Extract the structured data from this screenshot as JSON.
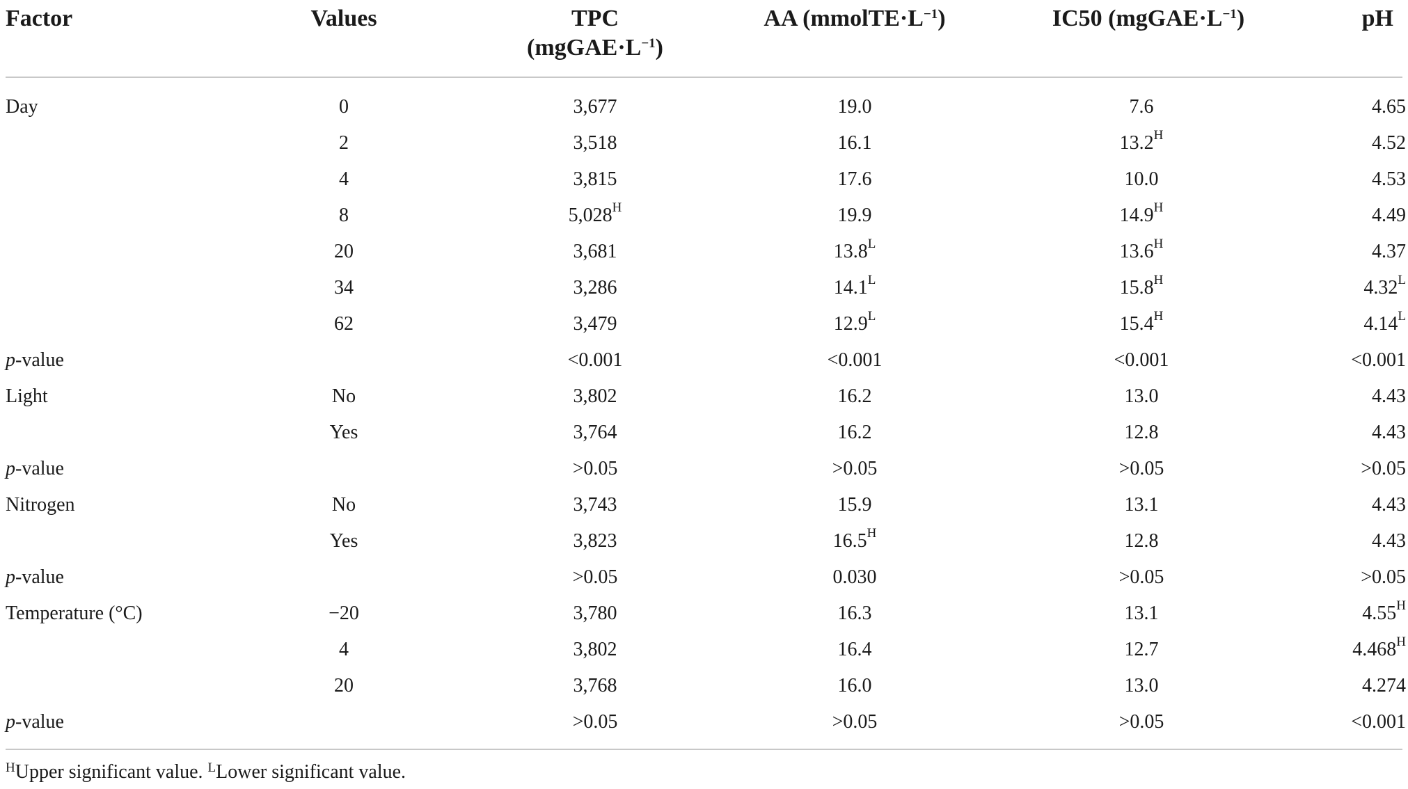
{
  "headers": {
    "factor": "Factor",
    "values": "Values",
    "tpc_line1": "TPC",
    "tpc_line2": "(mgGAE·L",
    "tpc_sup": "−1",
    "tpc_close": ")",
    "aa": "AA (mmolTE·L",
    "aa_sup": "−1",
    "aa_close": ")",
    "ic50": "IC50 (mgGAE·L",
    "ic50_sup": "−1",
    "ic50_close": ")",
    "ph": "pH"
  },
  "rows": [
    {
      "factor": "Day",
      "factor_italic": "",
      "value": "0",
      "tpc": "3,677",
      "tpc_sup": "",
      "aa": "19.0",
      "aa_sup": "",
      "ic50": "7.6",
      "ic50_sup": "",
      "ph": "4.65",
      "ph_sup": ""
    },
    {
      "factor": "",
      "factor_italic": "",
      "value": "2",
      "tpc": "3,518",
      "tpc_sup": "",
      "aa": "16.1",
      "aa_sup": "",
      "ic50": "13.2",
      "ic50_sup": "H",
      "ph": "4.52",
      "ph_sup": ""
    },
    {
      "factor": "",
      "factor_italic": "",
      "value": "4",
      "tpc": "3,815",
      "tpc_sup": "",
      "aa": "17.6",
      "aa_sup": "",
      "ic50": "10.0",
      "ic50_sup": "",
      "ph": "4.53",
      "ph_sup": ""
    },
    {
      "factor": "",
      "factor_italic": "",
      "value": "8",
      "tpc": "5,028",
      "tpc_sup": "H",
      "aa": "19.9",
      "aa_sup": "",
      "ic50": "14.9",
      "ic50_sup": "H",
      "ph": "4.49",
      "ph_sup": ""
    },
    {
      "factor": "",
      "factor_italic": "",
      "value": "20",
      "tpc": "3,681",
      "tpc_sup": "",
      "aa": "13.8",
      "aa_sup": "L",
      "ic50": "13.6",
      "ic50_sup": "H",
      "ph": "4.37",
      "ph_sup": ""
    },
    {
      "factor": "",
      "factor_italic": "",
      "value": "34",
      "tpc": "3,286",
      "tpc_sup": "",
      "aa": "14.1",
      "aa_sup": "L",
      "ic50": "15.8",
      "ic50_sup": "H",
      "ph": "4.32",
      "ph_sup": "L"
    },
    {
      "factor": "",
      "factor_italic": "",
      "value": "62",
      "tpc": "3,479",
      "tpc_sup": "",
      "aa": "12.9",
      "aa_sup": "L",
      "ic50": "15.4",
      "ic50_sup": "H",
      "ph": "4.14",
      "ph_sup": "L"
    },
    {
      "factor": "-value",
      "factor_italic": "p",
      "value": "",
      "tpc": "<0.001",
      "tpc_sup": "",
      "aa": "<0.001",
      "aa_sup": "",
      "ic50": "<0.001",
      "ic50_sup": "",
      "ph": "<0.001",
      "ph_sup": ""
    },
    {
      "factor": "Light",
      "factor_italic": "",
      "value": "No",
      "tpc": "3,802",
      "tpc_sup": "",
      "aa": "16.2",
      "aa_sup": "",
      "ic50": "13.0",
      "ic50_sup": "",
      "ph": "4.43",
      "ph_sup": ""
    },
    {
      "factor": "",
      "factor_italic": "",
      "value": "Yes",
      "tpc": "3,764",
      "tpc_sup": "",
      "aa": "16.2",
      "aa_sup": "",
      "ic50": "12.8",
      "ic50_sup": "",
      "ph": "4.43",
      "ph_sup": ""
    },
    {
      "factor": "-value",
      "factor_italic": "p",
      "value": "",
      "tpc": ">0.05",
      "tpc_sup": "",
      "aa": ">0.05",
      "aa_sup": "",
      "ic50": ">0.05",
      "ic50_sup": "",
      "ph": ">0.05",
      "ph_sup": ""
    },
    {
      "factor": "Nitrogen",
      "factor_italic": "",
      "value": "No",
      "tpc": "3,743",
      "tpc_sup": "",
      "aa": "15.9",
      "aa_sup": "",
      "ic50": "13.1",
      "ic50_sup": "",
      "ph": "4.43",
      "ph_sup": ""
    },
    {
      "factor": "",
      "factor_italic": "",
      "value": "Yes",
      "tpc": "3,823",
      "tpc_sup": "",
      "aa": "16.5",
      "aa_sup": "H",
      "ic50": "12.8",
      "ic50_sup": "",
      "ph": "4.43",
      "ph_sup": ""
    },
    {
      "factor": "-value",
      "factor_italic": "p",
      "value": "",
      "tpc": ">0.05",
      "tpc_sup": "",
      "aa": "0.030",
      "aa_sup": "",
      "ic50": ">0.05",
      "ic50_sup": "",
      "ph": ">0.05",
      "ph_sup": ""
    },
    {
      "factor": "Temperature (°C)",
      "factor_italic": "",
      "value": "−20",
      "tpc": "3,780",
      "tpc_sup": "",
      "aa": "16.3",
      "aa_sup": "",
      "ic50": "13.1",
      "ic50_sup": "",
      "ph": "4.55",
      "ph_sup": "H"
    },
    {
      "factor": "",
      "factor_italic": "",
      "value": "4",
      "tpc": "3,802",
      "tpc_sup": "",
      "aa": "16.4",
      "aa_sup": "",
      "ic50": "12.7",
      "ic50_sup": "",
      "ph": "4.468",
      "ph_sup": "H"
    },
    {
      "factor": "",
      "factor_italic": "",
      "value": "20",
      "tpc": "3,768",
      "tpc_sup": "",
      "aa": "16.0",
      "aa_sup": "",
      "ic50": "13.0",
      "ic50_sup": "",
      "ph": "4.274",
      "ph_sup": ""
    },
    {
      "factor": "-value",
      "factor_italic": "p",
      "value": "",
      "tpc": ">0.05",
      "tpc_sup": "",
      "aa": ">0.05",
      "aa_sup": "",
      "ic50": ">0.05",
      "ic50_sup": "",
      "ph": "<0.001",
      "ph_sup": ""
    }
  ],
  "footnote": {
    "h_mark": "H",
    "h_text": "Upper significant value. ",
    "l_mark": "L",
    "l_text": "Lower significant value."
  }
}
